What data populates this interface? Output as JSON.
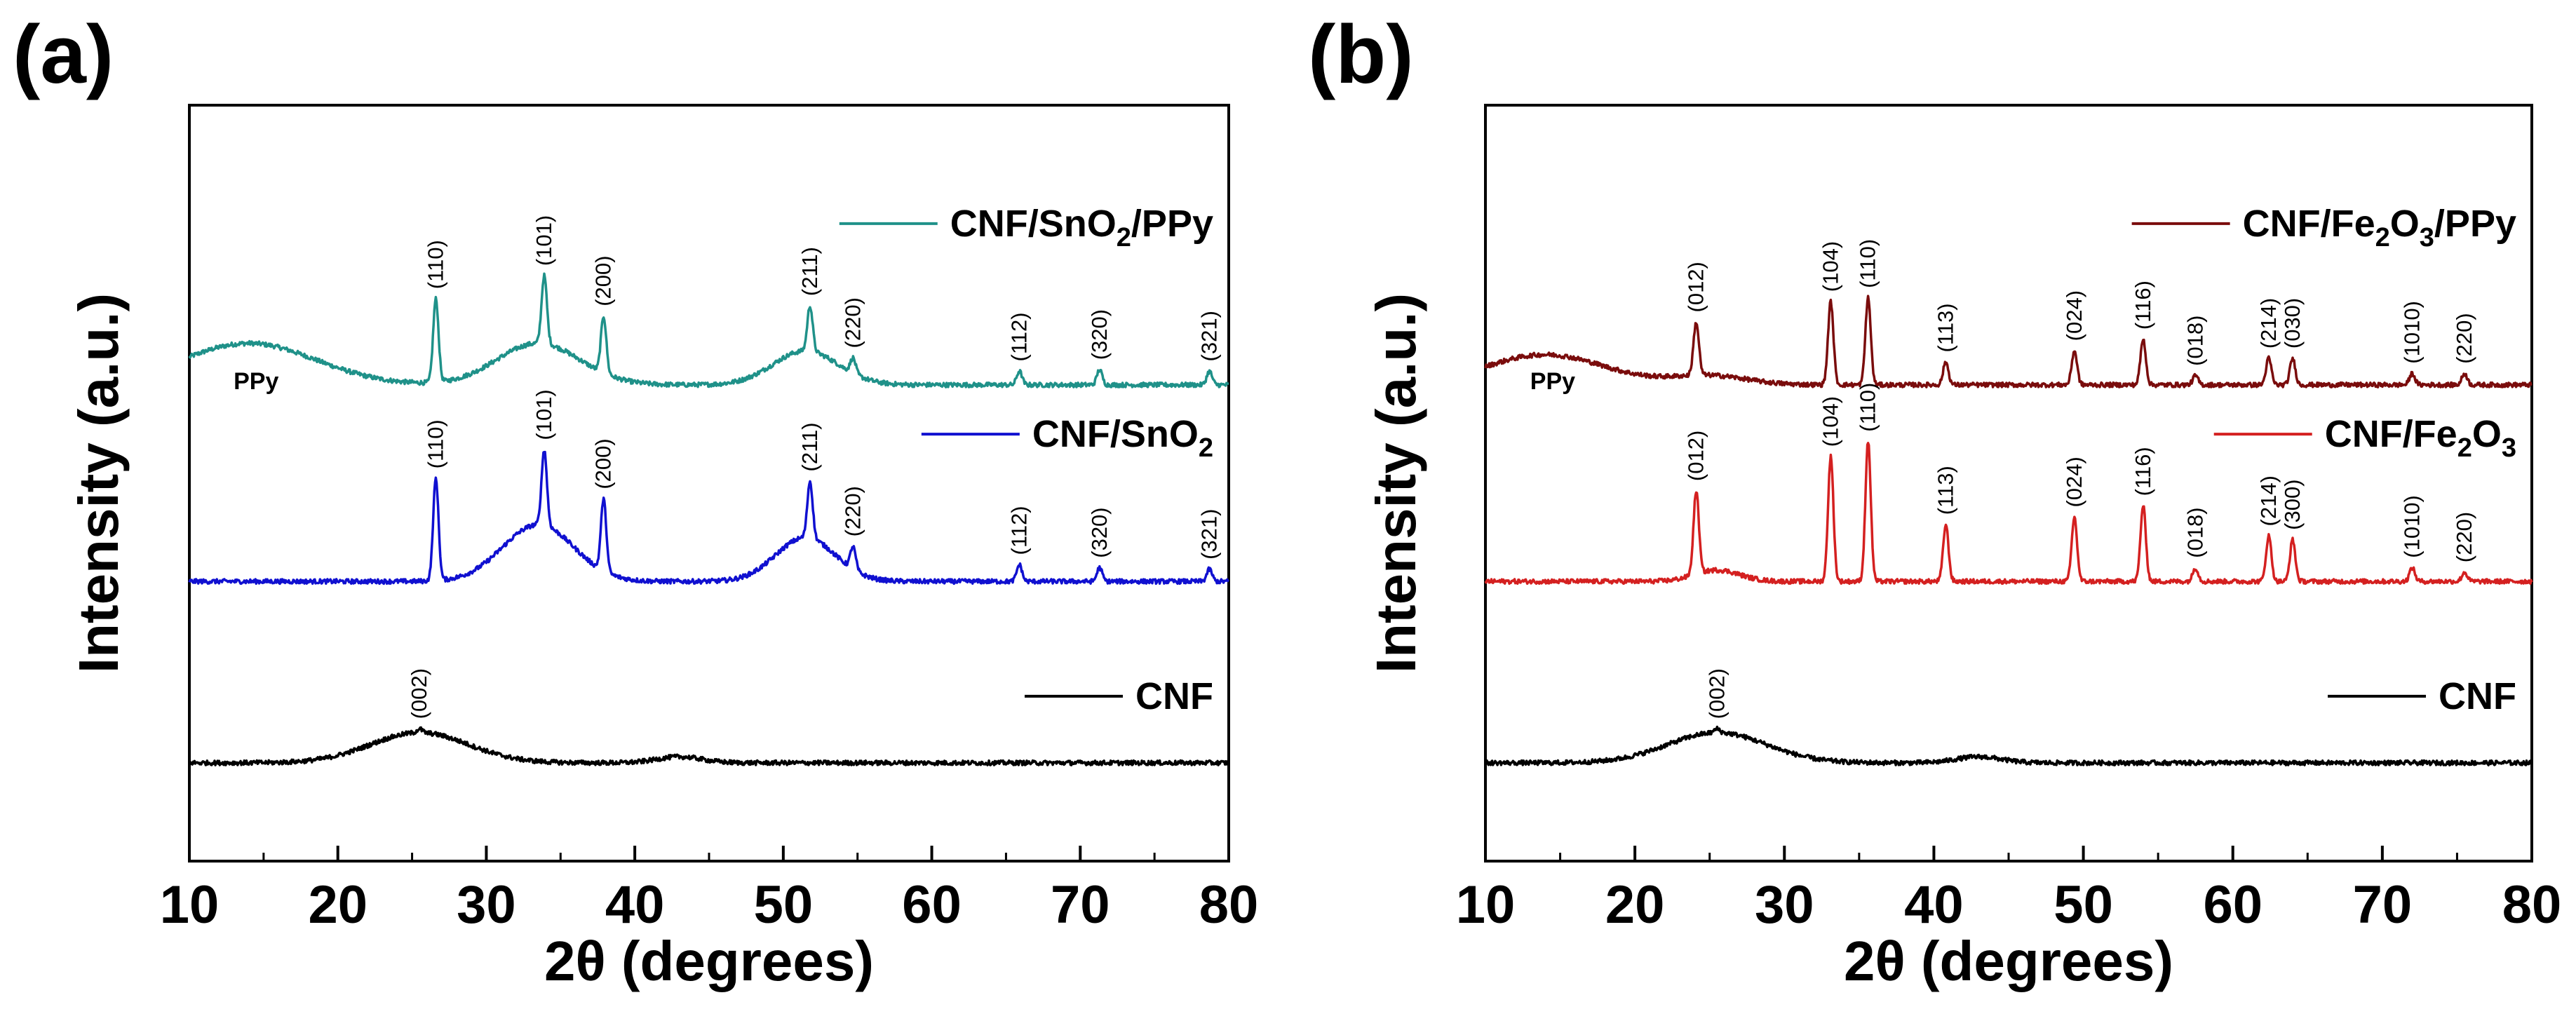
{
  "figure": {
    "image_description": "XRD patterns"
  },
  "chart_data": [
    {
      "type": "line",
      "panel_label": "(a)",
      "xlabel": "2θ (degrees)",
      "ylabel": "Intensity (a.u.)",
      "xlim": [
        10,
        80
      ],
      "xticks": [
        10,
        20,
        30,
        40,
        50,
        60,
        70,
        80
      ],
      "yticks_shown": false,
      "legend_position": "right, beside each trace",
      "series": [
        {
          "name": "CNF/SnO2/PPy",
          "legend_main": "CNF/SnO",
          "legend_sub": "2",
          "legend_tail": "/PPy",
          "color": "#1f9189",
          "base_level": 0.37,
          "bumps": [
            [
              14,
              0.055,
              4.5
            ],
            [
              33.5,
              0.055,
              2.8
            ],
            [
              51.5,
              0.045,
              2.2
            ]
          ],
          "peaks": [
            {
              "x": 26.6,
              "height": 0.11,
              "label": "(110)"
            },
            {
              "x": 33.9,
              "height": 0.09,
              "label": "(101)"
            },
            {
              "x": 37.9,
              "height": 0.075,
              "label": "(200)"
            },
            {
              "x": 51.8,
              "height": 0.06,
              "label": "(211)"
            },
            {
              "x": 54.7,
              "height": 0.02,
              "label": "(220)"
            },
            {
              "x": 65.9,
              "height": 0.018,
              "label": "(112)"
            },
            {
              "x": 71.3,
              "height": 0.02,
              "label": "(320)"
            },
            {
              "x": 78.7,
              "height": 0.018,
              "label": "(321)"
            }
          ],
          "annotations": [
            {
              "x": 14.5,
              "text": "PPy"
            }
          ]
        },
        {
          "name": "CNF/SnO2",
          "legend_main": "CNF/SnO",
          "legend_sub": "2",
          "legend_tail": "",
          "color": "#1010d0",
          "base_level": 0.63,
          "bumps": [
            [
              33.5,
              0.075,
              2.4
            ],
            [
              51.5,
              0.058,
              2.0
            ]
          ],
          "peaks": [
            {
              "x": 26.6,
              "height": 0.135,
              "label": "(110)"
            },
            {
              "x": 33.9,
              "height": 0.1,
              "label": "(101)"
            },
            {
              "x": 37.9,
              "height": 0.095,
              "label": "(200)"
            },
            {
              "x": 51.8,
              "height": 0.075,
              "label": "(211)"
            },
            {
              "x": 54.7,
              "height": 0.03,
              "label": "(220)"
            },
            {
              "x": 65.9,
              "height": 0.022,
              "label": "(112)"
            },
            {
              "x": 71.3,
              "height": 0.018,
              "label": "(320)"
            },
            {
              "x": 78.7,
              "height": 0.016,
              "label": "(321)"
            }
          ],
          "annotations": []
        },
        {
          "name": "CNF",
          "legend_main": "CNF",
          "legend_sub": "",
          "legend_tail": "",
          "color": "#000000",
          "base_level": 0.87,
          "bumps": [
            [
              25.5,
              0.04,
              3.3
            ],
            [
              43,
              0.008,
              1.5
            ]
          ],
          "peaks": [
            {
              "x": 25.5,
              "height": 0.005,
              "label": "(002)"
            }
          ],
          "annotations": []
        }
      ]
    },
    {
      "type": "line",
      "panel_label": "(b)",
      "xlabel": "2θ (degrees)",
      "ylabel": "Intensity (a.u.)",
      "xlim": [
        10,
        80
      ],
      "xticks": [
        10,
        20,
        30,
        40,
        50,
        60,
        70,
        80
      ],
      "yticks_shown": false,
      "legend_position": "right, beside each trace",
      "series": [
        {
          "name": "CNF/Fe2O3/PPy",
          "legend_main": "CNF/Fe",
          "legend_sub": "2",
          "legend_tail": "O",
          "legend_sub2": "3",
          "legend_tail2": "/PPy",
          "color": "#7a0c0c",
          "base_level": 0.37,
          "bumps": [
            [
              14,
              0.04,
              4.0
            ],
            [
              25,
              0.012,
              2.5
            ]
          ],
          "peaks": [
            {
              "x": 24.1,
              "height": 0.07,
              "label": "(012)"
            },
            {
              "x": 33.1,
              "height": 0.11,
              "label": "(104)"
            },
            {
              "x": 35.6,
              "height": 0.115,
              "label": "(110)"
            },
            {
              "x": 40.8,
              "height": 0.03,
              "label": "(113)"
            },
            {
              "x": 49.4,
              "height": 0.045,
              "label": "(024)"
            },
            {
              "x": 54.0,
              "height": 0.06,
              "label": "(116)"
            },
            {
              "x": 57.5,
              "height": 0.012,
              "label": "(018)"
            },
            {
              "x": 62.4,
              "height": 0.035,
              "label": "(214)"
            },
            {
              "x": 64.0,
              "height": 0.035,
              "label": "(030)"
            },
            {
              "x": 72.0,
              "height": 0.015,
              "label": "(1010)"
            },
            {
              "x": 75.5,
              "height": 0.015,
              "label": "(220)"
            }
          ],
          "annotations": [
            {
              "x": 14.5,
              "text": "PPy"
            }
          ]
        },
        {
          "name": "CNF/Fe2O3",
          "legend_main": "CNF/Fe",
          "legend_sub": "2",
          "legend_tail": "O",
          "legend_sub2": "3",
          "legend_tail2": "",
          "color": "#d42020",
          "base_level": 0.63,
          "bumps": [
            [
              25.5,
              0.015,
              1.5
            ]
          ],
          "peaks": [
            {
              "x": 24.1,
              "height": 0.11,
              "label": "(012)"
            },
            {
              "x": 33.1,
              "height": 0.165,
              "label": "(104)"
            },
            {
              "x": 35.6,
              "height": 0.185,
              "label": "(110)"
            },
            {
              "x": 40.8,
              "height": 0.075,
              "label": "(113)"
            },
            {
              "x": 49.4,
              "height": 0.085,
              "label": "(024)"
            },
            {
              "x": 54.0,
              "height": 0.1,
              "label": "(116)"
            },
            {
              "x": 57.5,
              "height": 0.018,
              "label": "(018)"
            },
            {
              "x": 62.4,
              "height": 0.06,
              "label": "(214)"
            },
            {
              "x": 64.0,
              "height": 0.055,
              "label": "(300)"
            },
            {
              "x": 72.0,
              "height": 0.018,
              "label": "(1010)"
            },
            {
              "x": 75.5,
              "height": 0.012,
              "label": "(220)"
            }
          ],
          "annotations": []
        },
        {
          "name": "CNF",
          "legend_main": "CNF",
          "legend_sub": "",
          "legend_tail": "",
          "color": "#000000",
          "base_level": 0.87,
          "bumps": [
            [
              25.5,
              0.04,
              3.3
            ],
            [
              43,
              0.008,
              1.5
            ]
          ],
          "peaks": [
            {
              "x": 25.5,
              "height": 0.005,
              "label": "(002)"
            }
          ],
          "annotations": []
        }
      ]
    }
  ]
}
